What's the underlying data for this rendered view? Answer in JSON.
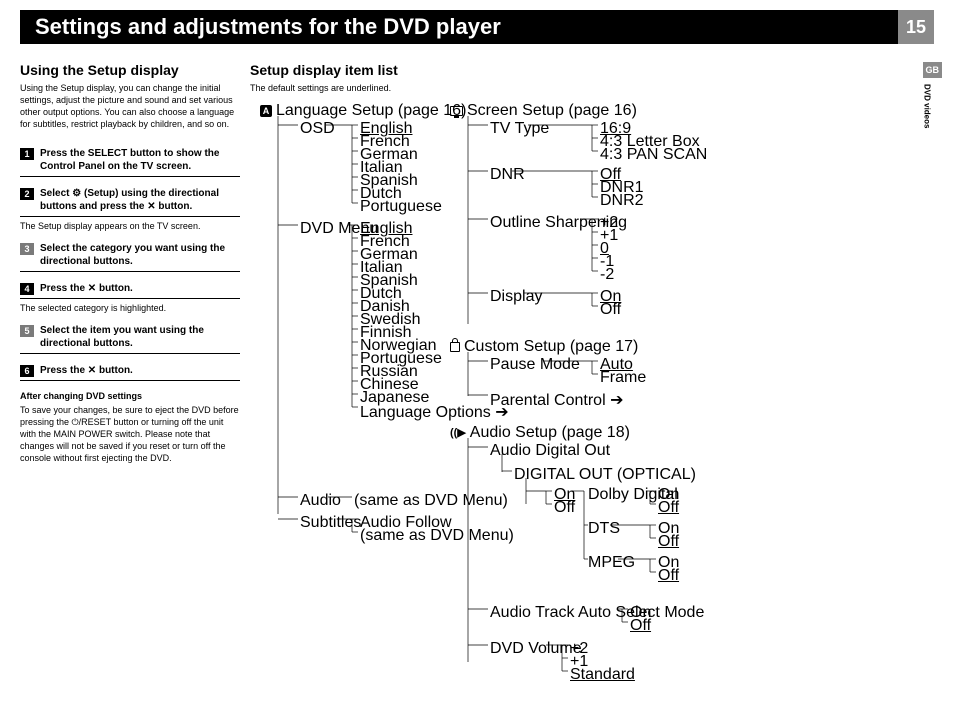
{
  "header": {
    "title": "Settings and adjustments for the DVD player",
    "page": "15"
  },
  "side": {
    "code": "GB",
    "section": "DVD videos"
  },
  "left": {
    "h2": "Using the Setup display",
    "intro": "Using the Setup display, you can change the initial settings, adjust the picture and sound and set various other output options. You can also choose a language for subtitles, restrict playback by children, and so on.",
    "steps": [
      {
        "n": "1",
        "title": "Press the SELECT button to show the Control Panel on the TV screen.",
        "body": ""
      },
      {
        "n": "2",
        "title": "Select ⚙ (Setup) using the directional buttons and press the ✕ button.",
        "body": "The Setup display appears on the TV screen."
      },
      {
        "n": "3",
        "title": "Select the category you want using the directional buttons.",
        "body": ""
      },
      {
        "n": "4",
        "title": "Press the ✕ button.",
        "body": "The selected category is highlighted."
      },
      {
        "n": "5",
        "title": "Select the item you want using the directional buttons.",
        "body": ""
      },
      {
        "n": "6",
        "title": "Press the ✕ button.",
        "body": ""
      }
    ],
    "after_h": "After changing DVD settings",
    "after": "To save your changes, be sure to eject the DVD before pressing the ⏻/RESET button or turning off the unit with the MAIN POWER switch.  Please note that changes will not be saved if you reset or turn off the console without first ejecting the DVD."
  },
  "right": {
    "h2": "Setup display item list",
    "sub": "The default settings are underlined.",
    "lang": {
      "title": "Language Setup",
      "page": "(page 16)",
      "osd": {
        "label": "OSD",
        "opts": [
          "English",
          "French",
          "German",
          "Italian",
          "Spanish",
          "Dutch",
          "Portuguese"
        ],
        "default": 0
      },
      "dvdmenu": {
        "label": "DVD Menu",
        "opts": [
          "English",
          "French",
          "German",
          "Italian",
          "Spanish",
          "Dutch",
          "Danish",
          "Swedish",
          "Finnish",
          "Norwegian",
          "Portuguese",
          "Russian",
          "Chinese",
          "Japanese",
          "Language Options"
        ],
        "default": 0,
        "last_arrow": true
      },
      "audio": {
        "label": "Audio",
        "note": "(same as DVD Menu)"
      },
      "subs": {
        "label": "Subtitles",
        "opts": [
          "Audio Follow",
          "(same as DVD Menu)"
        ]
      }
    },
    "screen": {
      "title": "Screen Setup",
      "page": "(page 16)",
      "tvtype": {
        "label": "TV Type",
        "opts": [
          "16:9",
          "4:3 Letter Box",
          "4:3 PAN SCAN"
        ],
        "default": 0
      },
      "dnr": {
        "label": "DNR",
        "opts": [
          "Off",
          "DNR1",
          "DNR2"
        ],
        "default": 0
      },
      "outline": {
        "label": "Outline Sharpening",
        "opts": [
          "+2",
          "+1",
          "0",
          "-1",
          "-2"
        ],
        "default": 2
      },
      "display": {
        "label": "Display",
        "opts": [
          "On",
          "Off"
        ],
        "default": 0
      }
    },
    "custom": {
      "title": "Custom Setup",
      "page": "(page 17)",
      "pause": {
        "label": "Pause Mode",
        "opts": [
          "Auto",
          "Frame"
        ],
        "default": 0
      },
      "parental": {
        "label": "Parental Control"
      }
    },
    "audio": {
      "title": "Audio Setup",
      "page": "(page 18)",
      "ado": {
        "label": "Audio Digital Out",
        "digital": {
          "label": "DIGITAL OUT (OPTICAL)",
          "opts": [
            "On",
            "Off"
          ],
          "default": 0,
          "dolby": {
            "label": "Dolby Digital",
            "opts": [
              "On",
              "Off"
            ],
            "default": 1
          },
          "dts": {
            "label": "DTS",
            "opts": [
              "On",
              "Off"
            ],
            "default": 1
          },
          "mpeg": {
            "label": "MPEG",
            "opts": [
              "On",
              "Off"
            ],
            "default": 1
          }
        }
      },
      "track": {
        "label": "Audio Track Auto Select Mode",
        "opts": [
          "On",
          "Off"
        ],
        "default": 1
      },
      "vol": {
        "label": "DVD Volume",
        "opts": [
          "+2",
          "+1",
          "Standard"
        ],
        "default": 2
      }
    }
  }
}
